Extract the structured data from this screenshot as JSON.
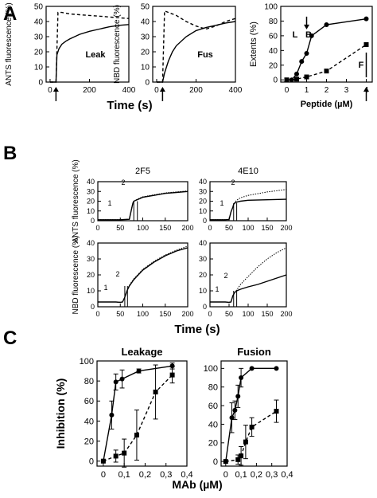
{
  "panels": {
    "A": "A",
    "B": "B",
    "C": "C"
  },
  "chart_data": [
    {
      "id": "A1",
      "type": "line",
      "panel_label": "A",
      "title": "",
      "xlabel": "",
      "ylabel": "ANTS fluorescence (%)",
      "xlim": [
        -20,
        400
      ],
      "ylim": [
        0,
        50
      ],
      "xticks": [
        "0",
        "200",
        "400"
      ],
      "yticks": [
        "0",
        "10",
        "20",
        "30",
        "40",
        "50"
      ],
      "annotations": [
        "Leak"
      ],
      "series": [
        {
          "style": "solid",
          "x": [
            0,
            30,
            35,
            45,
            60,
            80,
            100,
            150,
            200,
            250,
            300,
            350,
            400
          ],
          "y": [
            0,
            0,
            18,
            22,
            25,
            27,
            28.5,
            31.5,
            33.5,
            35,
            36.5,
            37.5,
            38
          ]
        },
        {
          "style": "dashed",
          "x": [
            0,
            30,
            40,
            60,
            100,
            150,
            200,
            250,
            300,
            350,
            400
          ],
          "y": [
            0,
            0,
            46,
            46,
            45,
            44.5,
            44,
            43.5,
            43,
            42.5,
            42
          ]
        }
      ],
      "markers": [
        {
          "kind": "up-arrow",
          "x": 30
        }
      ]
    },
    {
      "id": "A2",
      "type": "line",
      "title": "",
      "xlabel": "",
      "ylabel": "NBD fluorescence (%)",
      "xlim": [
        -20,
        400
      ],
      "ylim": [
        0,
        50
      ],
      "xticks": [
        "0",
        "200",
        "400"
      ],
      "yticks": [
        "0",
        "10",
        "20",
        "30",
        "40",
        "50"
      ],
      "annotations": [
        "Fus"
      ],
      "series": [
        {
          "style": "solid",
          "x": [
            0,
            30,
            40,
            60,
            80,
            100,
            150,
            200,
            250,
            300,
            350,
            400
          ],
          "y": [
            0,
            0,
            6,
            14,
            20,
            24,
            30,
            34,
            36,
            37.5,
            39,
            40
          ]
        },
        {
          "style": "dashed",
          "x": [
            0,
            30,
            40,
            100,
            150,
            200,
            250,
            300,
            350,
            400
          ],
          "y": [
            0,
            0,
            47,
            44,
            40,
            37,
            35,
            37,
            40,
            42
          ]
        }
      ],
      "markers": [
        {
          "kind": "up-arrow",
          "x": 30
        }
      ]
    },
    {
      "id": "A3",
      "type": "line",
      "title": "",
      "xlabel": "Peptide (µM)",
      "ylabel": "Extents (%)",
      "xlim": [
        -0.3,
        4.3
      ],
      "ylim": [
        -3,
        100
      ],
      "xticks": [
        "0",
        "1",
        "2",
        "3",
        "4"
      ],
      "yticks": [
        "0",
        "20",
        "40",
        "60",
        "80",
        "100"
      ],
      "annotations": [
        "L",
        "B",
        "F"
      ],
      "series": [
        {
          "style": "solid",
          "marker": "circle",
          "x": [
            0.25,
            0.5,
            0.75,
            1,
            1.25,
            2,
            4
          ],
          "y": [
            0,
            8,
            25,
            36,
            60,
            75,
            83
          ]
        },
        {
          "style": "dashed",
          "marker": "square",
          "x": [
            0,
            0.5,
            1,
            2,
            4
          ],
          "y": [
            0,
            1,
            4,
            12,
            48
          ]
        }
      ],
      "markers": [
        {
          "kind": "down-arrow",
          "x": 1
        },
        {
          "kind": "up-arrow",
          "x": 4
        }
      ]
    },
    {
      "id": "B1",
      "type": "line",
      "panel_label": "B",
      "title": "2F5",
      "xlabel": "",
      "ylabel": "ANTS fluorescence (%)",
      "xlim": [
        0,
        200
      ],
      "ylim": [
        0,
        40
      ],
      "xticks": [
        "0",
        "50",
        "100",
        "150",
        "200"
      ],
      "yticks": [
        "0",
        "10",
        "20",
        "30",
        "40"
      ],
      "annotations": [
        "1",
        "2"
      ],
      "series": [
        {
          "style": "solid",
          "x": [
            0,
            50,
            60,
            70,
            75,
            78,
            80,
            90,
            100,
            125,
            150,
            175,
            200
          ],
          "y": [
            1,
            1,
            1.2,
            1.5,
            12,
            18,
            20,
            22,
            24,
            26,
            28,
            29,
            30
          ]
        },
        {
          "style": "dotted",
          "x": [
            0,
            50,
            60,
            70,
            75,
            78,
            80,
            90,
            100,
            125,
            150,
            175,
            200
          ],
          "y": [
            1,
            1,
            1.2,
            1.5,
            12,
            18,
            20,
            22.5,
            24.5,
            26.5,
            28.5,
            29.5,
            30.5
          ]
        }
      ]
    },
    {
      "id": "B2",
      "type": "line",
      "title": "4E10",
      "xlabel": "",
      "ylabel": "",
      "xlim": [
        0,
        200
      ],
      "ylim": [
        0,
        40
      ],
      "xticks": [
        "0",
        "50",
        "100",
        "150",
        "200"
      ],
      "yticks": [
        "0",
        "10",
        "20",
        "30",
        "40"
      ],
      "annotations": [
        "1",
        "2"
      ],
      "series": [
        {
          "style": "solid",
          "x": [
            0,
            40,
            50,
            55,
            60,
            62,
            65,
            70,
            80,
            100,
            150,
            200
          ],
          "y": [
            1,
            1,
            1.2,
            9,
            14,
            17,
            18,
            19,
            20,
            21,
            21.5,
            22
          ]
        },
        {
          "style": "dotted",
          "x": [
            0,
            40,
            50,
            55,
            60,
            62,
            65,
            70,
            80,
            100,
            150,
            200
          ],
          "y": [
            1,
            1,
            1.2,
            9,
            14,
            17,
            19,
            21,
            23.5,
            26,
            29.5,
            32
          ]
        }
      ]
    },
    {
      "id": "B3",
      "type": "line",
      "title": "",
      "xlabel": "",
      "ylabel": "NBD fluorescence (%)",
      "xlim": [
        0,
        200
      ],
      "ylim": [
        0,
        40
      ],
      "xticks": [
        "0",
        "50",
        "100",
        "150",
        "200"
      ],
      "yticks": [
        "0",
        "10",
        "20",
        "30",
        "40"
      ],
      "annotations": [
        "1",
        "2"
      ],
      "series": [
        {
          "style": "solid",
          "x": [
            0,
            40,
            50,
            55,
            60,
            65,
            70,
            80,
            100,
            125,
            150,
            175,
            200
          ],
          "y": [
            3,
            3,
            2.8,
            3,
            6,
            10,
            13,
            17,
            23,
            28,
            32,
            35,
            37
          ]
        },
        {
          "style": "dotted",
          "x": [
            0,
            40,
            50,
            55,
            60,
            65,
            70,
            80,
            100,
            125,
            150,
            175,
            200
          ],
          "y": [
            3,
            3,
            2.8,
            3,
            6,
            10,
            13.5,
            17.5,
            23.5,
            28.5,
            32.5,
            35.5,
            38
          ]
        }
      ]
    },
    {
      "id": "B4",
      "type": "line",
      "title": "",
      "xlabel": "",
      "ylabel": "",
      "xlim": [
        0,
        200
      ],
      "ylim": [
        0,
        40
      ],
      "xticks": [
        "0",
        "50",
        "100",
        "150",
        "200"
      ],
      "yticks": [
        "0",
        "10",
        "20",
        "30",
        "40"
      ],
      "annotations": [
        "1",
        "2"
      ],
      "series": [
        {
          "style": "solid",
          "x": [
            0,
            40,
            50,
            55,
            60,
            65,
            70,
            80,
            100,
            125,
            150,
            175,
            200
          ],
          "y": [
            3,
            3,
            2.8,
            3,
            7,
            9,
            10,
            11,
            12.5,
            14,
            16,
            18,
            20
          ]
        },
        {
          "style": "dotted",
          "x": [
            0,
            40,
            50,
            55,
            60,
            65,
            70,
            80,
            100,
            125,
            150,
            175,
            200
          ],
          "y": [
            3,
            3,
            2.8,
            3,
            7,
            9,
            10.5,
            14,
            19,
            25,
            30,
            34,
            37
          ]
        }
      ]
    },
    {
      "id": "C1",
      "type": "line",
      "panel_label": "C",
      "title": "Leakage",
      "xlabel": "",
      "ylabel": "Inhibition (%)",
      "xlim": [
        -0.03,
        0.4
      ],
      "ylim": [
        -5,
        100
      ],
      "xticks": [
        "0",
        "0,1",
        "0,2",
        "0,3",
        "0,4"
      ],
      "yticks": [
        "0",
        "20",
        "40",
        "60",
        "80",
        "100"
      ],
      "series": [
        {
          "style": "solid",
          "marker": "circle",
          "x": [
            0,
            0.04,
            0.06,
            0.09,
            0.17,
            0.33
          ],
          "y": [
            0,
            46,
            79,
            82,
            90,
            95
          ],
          "err": [
            0,
            14,
            8,
            9,
            2,
            3
          ]
        },
        {
          "style": "dashed",
          "marker": "square",
          "x": [
            0,
            0.06,
            0.1,
            0.16,
            0.25,
            0.33
          ],
          "y": [
            0,
            5,
            8,
            26,
            69,
            86
          ],
          "err": [
            0,
            6,
            14,
            25,
            27,
            8
          ]
        }
      ]
    },
    {
      "id": "C2",
      "type": "line",
      "title": "Fusion",
      "xlabel": "",
      "ylabel": "",
      "xlim": [
        -0.03,
        0.4
      ],
      "ylim": [
        -5,
        108
      ],
      "xticks": [
        "0",
        "0,1",
        "0,2",
        "0,3",
        "0,4"
      ],
      "yticks": [
        "0",
        "20",
        "40",
        "60",
        "80",
        "100"
      ],
      "series": [
        {
          "style": "solid",
          "marker": "circle",
          "x": [
            0,
            0.04,
            0.06,
            0.08,
            0.1,
            0.17,
            0.33
          ],
          "y": [
            0,
            47,
            55,
            70,
            90,
            100,
            100
          ],
          "err": [
            0,
            16,
            10,
            12,
            10,
            0,
            0
          ]
        },
        {
          "style": "dashed",
          "marker": "square",
          "x": [
            0,
            0.08,
            0.1,
            0.13,
            0.17,
            0.33
          ],
          "y": [
            0,
            2,
            6,
            21,
            37,
            54
          ],
          "err": [
            0,
            5,
            10,
            18,
            10,
            12
          ]
        }
      ]
    }
  ],
  "shared_labels": {
    "a_xlabel": "Time (s)",
    "b_xlabel": "Time (s)",
    "c_xlabel": "MAb (µM)"
  }
}
